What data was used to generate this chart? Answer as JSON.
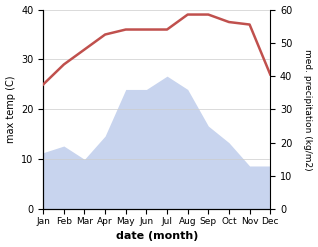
{
  "months": [
    "Jan",
    "Feb",
    "Mar",
    "Apr",
    "May",
    "Jun",
    "Jul",
    "Aug",
    "Sep",
    "Oct",
    "Nov",
    "Dec"
  ],
  "temperature": [
    25,
    29,
    32,
    35,
    36,
    36,
    36,
    39,
    39,
    37.5,
    37,
    27
  ],
  "precipitation": [
    17,
    19,
    15,
    22,
    36,
    36,
    40,
    36,
    25,
    20,
    13,
    13
  ],
  "temp_color": "#c0504d",
  "precip_fill_color": "#c8d4ee",
  "ylabel_left": "max temp (C)",
  "ylabel_right": "med. precipitation (kg/m2)",
  "xlabel": "date (month)",
  "ylim_left": [
    0,
    40
  ],
  "ylim_right": [
    0,
    60
  ],
  "yticks_left": [
    0,
    10,
    20,
    30,
    40
  ],
  "yticks_right": [
    0,
    10,
    20,
    30,
    40,
    50,
    60
  ],
  "background_color": "#ffffff"
}
